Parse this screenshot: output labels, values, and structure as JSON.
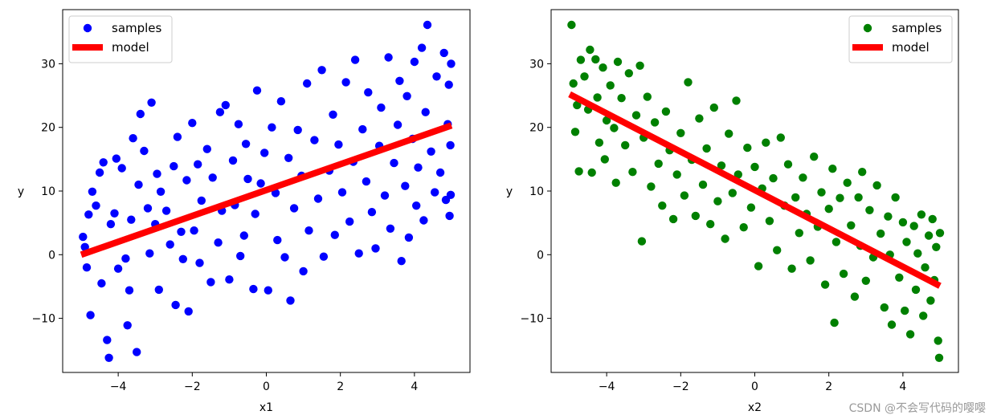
{
  "chart_data": [
    {
      "type": "scatter",
      "xlabel": "x1",
      "ylabel": "y",
      "xlim": [
        -5.5,
        5.5
      ],
      "ylim": [
        -18.5,
        38.5
      ],
      "xticks": [
        -4,
        -2,
        0,
        2,
        4
      ],
      "yticks": [
        -10,
        0,
        10,
        20,
        30
      ],
      "legend_position": "top-left",
      "grid": false,
      "series": [
        {
          "name": "samples",
          "kind": "scatter",
          "color": "#0000ff",
          "points": [
            [
              -4.95,
              2.8
            ],
            [
              -4.9,
              1.2
            ],
            [
              -4.85,
              -2.0
            ],
            [
              -4.8,
              6.3
            ],
            [
              -4.75,
              -9.5
            ],
            [
              -4.7,
              9.9
            ],
            [
              -4.6,
              7.7
            ],
            [
              -4.5,
              12.9
            ],
            [
              -4.45,
              -4.5
            ],
            [
              -4.4,
              14.5
            ],
            [
              -4.3,
              -13.4
            ],
            [
              -4.25,
              -16.2
            ],
            [
              -4.2,
              4.8
            ],
            [
              -4.1,
              6.5
            ],
            [
              -4.05,
              15.1
            ],
            [
              -4.0,
              -2.2
            ],
            [
              -3.9,
              13.6
            ],
            [
              -3.8,
              -0.6
            ],
            [
              -3.75,
              -11.1
            ],
            [
              -3.7,
              -5.6
            ],
            [
              -3.65,
              5.5
            ],
            [
              -3.6,
              18.3
            ],
            [
              -3.5,
              -15.3
            ],
            [
              -3.45,
              11.0
            ],
            [
              -3.4,
              22.1
            ],
            [
              -3.3,
              16.3
            ],
            [
              -3.2,
              7.3
            ],
            [
              -3.15,
              0.2
            ],
            [
              -3.1,
              23.9
            ],
            [
              -3.0,
              4.8
            ],
            [
              -2.95,
              12.7
            ],
            [
              -2.9,
              -5.5
            ],
            [
              -2.85,
              9.9
            ],
            [
              -2.7,
              6.9
            ],
            [
              -2.6,
              1.6
            ],
            [
              -2.5,
              13.9
            ],
            [
              -2.45,
              -7.9
            ],
            [
              -2.4,
              18.5
            ],
            [
              -2.3,
              3.6
            ],
            [
              -2.25,
              -0.7
            ],
            [
              -2.15,
              11.7
            ],
            [
              -2.1,
              -8.9
            ],
            [
              -2.0,
              20.7
            ],
            [
              -1.95,
              3.8
            ],
            [
              -1.85,
              14.2
            ],
            [
              -1.8,
              -1.3
            ],
            [
              -1.75,
              8.5
            ],
            [
              -1.6,
              16.6
            ],
            [
              -1.5,
              -4.3
            ],
            [
              -1.45,
              12.1
            ],
            [
              -1.3,
              1.9
            ],
            [
              -1.25,
              22.4
            ],
            [
              -1.2,
              6.9
            ],
            [
              -1.1,
              23.5
            ],
            [
              -1.0,
              -3.9
            ],
            [
              -0.9,
              14.8
            ],
            [
              -0.85,
              7.8
            ],
            [
              -0.75,
              20.5
            ],
            [
              -0.7,
              -0.2
            ],
            [
              -0.6,
              3.0
            ],
            [
              -0.55,
              17.4
            ],
            [
              -0.5,
              11.9
            ],
            [
              -0.35,
              -5.4
            ],
            [
              -0.3,
              6.4
            ],
            [
              -0.25,
              25.8
            ],
            [
              -0.15,
              11.2
            ],
            [
              -0.05,
              16.0
            ],
            [
              0.05,
              -5.6
            ],
            [
              0.15,
              20.0
            ],
            [
              0.25,
              9.7
            ],
            [
              0.3,
              2.3
            ],
            [
              0.4,
              24.1
            ],
            [
              0.5,
              -0.4
            ],
            [
              0.6,
              15.2
            ],
            [
              0.65,
              -7.2
            ],
            [
              0.75,
              7.3
            ],
            [
              0.85,
              19.6
            ],
            [
              0.95,
              12.4
            ],
            [
              1.0,
              -2.6
            ],
            [
              1.1,
              26.9
            ],
            [
              1.15,
              3.8
            ],
            [
              1.3,
              18.0
            ],
            [
              1.4,
              8.8
            ],
            [
              1.5,
              29.0
            ],
            [
              1.55,
              -0.3
            ],
            [
              1.7,
              13.2
            ],
            [
              1.8,
              22.0
            ],
            [
              1.85,
              3.1
            ],
            [
              1.95,
              17.3
            ],
            [
              2.05,
              9.8
            ],
            [
              2.15,
              27.1
            ],
            [
              2.25,
              5.2
            ],
            [
              2.35,
              14.6
            ],
            [
              2.4,
              30.6
            ],
            [
              2.5,
              0.2
            ],
            [
              2.6,
              19.7
            ],
            [
              2.7,
              11.5
            ],
            [
              2.75,
              25.5
            ],
            [
              2.85,
              6.7
            ],
            [
              2.95,
              1.0
            ],
            [
              3.05,
              17.1
            ],
            [
              3.1,
              23.1
            ],
            [
              3.2,
              9.3
            ],
            [
              3.3,
              31.0
            ],
            [
              3.35,
              4.1
            ],
            [
              3.45,
              14.4
            ],
            [
              3.55,
              20.4
            ],
            [
              3.6,
              27.3
            ],
            [
              3.65,
              -1.0
            ],
            [
              3.75,
              10.8
            ],
            [
              3.8,
              24.9
            ],
            [
              3.85,
              2.7
            ],
            [
              3.95,
              18.2
            ],
            [
              4.0,
              30.3
            ],
            [
              4.05,
              7.7
            ],
            [
              4.1,
              13.7
            ],
            [
              4.2,
              32.5
            ],
            [
              4.25,
              5.4
            ],
            [
              4.3,
              22.4
            ],
            [
              4.35,
              36.1
            ],
            [
              4.45,
              16.2
            ],
            [
              4.55,
              9.8
            ],
            [
              4.6,
              28.0
            ],
            [
              4.7,
              12.9
            ],
            [
              4.8,
              31.7
            ],
            [
              4.85,
              8.6
            ],
            [
              4.9,
              20.5
            ],
            [
              4.93,
              26.7
            ],
            [
              4.95,
              6.1
            ],
            [
              4.97,
              17.2
            ],
            [
              4.98,
              9.4
            ],
            [
              4.99,
              30.0
            ]
          ]
        },
        {
          "name": "model",
          "kind": "line",
          "color": "#ff0000",
          "x": [
            -5.0,
            5.0
          ],
          "y": [
            0.0,
            20.3
          ]
        }
      ]
    },
    {
      "type": "scatter",
      "xlabel": "x2",
      "ylabel": "y",
      "xlim": [
        -5.5,
        5.5
      ],
      "ylim": [
        -18.5,
        38.5
      ],
      "xticks": [
        -4,
        -2,
        0,
        2,
        4
      ],
      "yticks": [
        -10,
        0,
        10,
        20,
        30
      ],
      "legend_position": "top-right",
      "grid": false,
      "series": [
        {
          "name": "samples",
          "kind": "scatter",
          "color": "#008000",
          "points": [
            [
              -4.95,
              36.1
            ],
            [
              -4.9,
              26.9
            ],
            [
              -4.85,
              19.3
            ],
            [
              -4.8,
              23.5
            ],
            [
              -4.75,
              13.1
            ],
            [
              -4.7,
              30.6
            ],
            [
              -4.6,
              28.0
            ],
            [
              -4.5,
              22.8
            ],
            [
              -4.45,
              32.2
            ],
            [
              -4.4,
              12.9
            ],
            [
              -4.3,
              30.7
            ],
            [
              -4.25,
              24.7
            ],
            [
              -4.2,
              17.6
            ],
            [
              -4.1,
              29.4
            ],
            [
              -4.05,
              15.0
            ],
            [
              -4.0,
              21.1
            ],
            [
              -3.9,
              26.6
            ],
            [
              -3.8,
              19.9
            ],
            [
              -3.75,
              11.3
            ],
            [
              -3.7,
              30.3
            ],
            [
              -3.6,
              24.6
            ],
            [
              -3.5,
              17.2
            ],
            [
              -3.4,
              28.5
            ],
            [
              -3.3,
              13.0
            ],
            [
              -3.2,
              21.9
            ],
            [
              -3.1,
              29.7
            ],
            [
              -3.05,
              2.1
            ],
            [
              -3.0,
              18.4
            ],
            [
              -2.9,
              24.8
            ],
            [
              -2.8,
              10.7
            ],
            [
              -2.7,
              20.8
            ],
            [
              -2.6,
              14.3
            ],
            [
              -2.5,
              7.7
            ],
            [
              -2.4,
              22.5
            ],
            [
              -2.3,
              16.4
            ],
            [
              -2.2,
              5.6
            ],
            [
              -2.1,
              12.6
            ],
            [
              -2.0,
              19.1
            ],
            [
              -1.9,
              9.3
            ],
            [
              -1.8,
              27.1
            ],
            [
              -1.7,
              14.9
            ],
            [
              -1.6,
              6.1
            ],
            [
              -1.5,
              21.4
            ],
            [
              -1.4,
              11.0
            ],
            [
              -1.3,
              16.7
            ],
            [
              -1.2,
              4.8
            ],
            [
              -1.1,
              23.1
            ],
            [
              -1.0,
              8.4
            ],
            [
              -0.9,
              14.0
            ],
            [
              -0.8,
              2.5
            ],
            [
              -0.7,
              19.0
            ],
            [
              -0.6,
              9.7
            ],
            [
              -0.5,
              24.2
            ],
            [
              -0.45,
              12.6
            ],
            [
              -0.3,
              4.3
            ],
            [
              -0.2,
              16.8
            ],
            [
              -0.1,
              7.4
            ],
            [
              0.0,
              13.8
            ],
            [
              0.1,
              -1.8
            ],
            [
              0.2,
              10.4
            ],
            [
              0.3,
              17.6
            ],
            [
              0.4,
              5.3
            ],
            [
              0.5,
              12.0
            ],
            [
              0.6,
              0.7
            ],
            [
              0.7,
              18.4
            ],
            [
              0.8,
              7.7
            ],
            [
              0.9,
              14.2
            ],
            [
              1.0,
              -2.2
            ],
            [
              1.1,
              9.0
            ],
            [
              1.2,
              3.4
            ],
            [
              1.3,
              12.1
            ],
            [
              1.4,
              6.4
            ],
            [
              1.5,
              -0.9
            ],
            [
              1.6,
              15.4
            ],
            [
              1.7,
              4.4
            ],
            [
              1.8,
              9.8
            ],
            [
              1.9,
              -4.7
            ],
            [
              2.0,
              7.2
            ],
            [
              2.1,
              13.5
            ],
            [
              2.15,
              -10.7
            ],
            [
              2.2,
              2.0
            ],
            [
              2.3,
              8.9
            ],
            [
              2.4,
              -3.0
            ],
            [
              2.5,
              11.3
            ],
            [
              2.6,
              4.6
            ],
            [
              2.7,
              -6.6
            ],
            [
              2.8,
              9.0
            ],
            [
              2.85,
              1.4
            ],
            [
              2.9,
              13.0
            ],
            [
              3.0,
              -4.1
            ],
            [
              3.1,
              7.0
            ],
            [
              3.2,
              -0.4
            ],
            [
              3.3,
              10.9
            ],
            [
              3.4,
              3.3
            ],
            [
              3.5,
              -8.3
            ],
            [
              3.6,
              6.0
            ],
            [
              3.65,
              0.0
            ],
            [
              3.7,
              -11.0
            ],
            [
              3.8,
              9.0
            ],
            [
              3.9,
              -3.6
            ],
            [
              4.0,
              5.1
            ],
            [
              4.05,
              -8.8
            ],
            [
              4.1,
              2.0
            ],
            [
              4.2,
              -12.5
            ],
            [
              4.3,
              4.5
            ],
            [
              4.35,
              -5.5
            ],
            [
              4.4,
              0.2
            ],
            [
              4.5,
              6.3
            ],
            [
              4.55,
              -9.6
            ],
            [
              4.6,
              -2.0
            ],
            [
              4.7,
              3.0
            ],
            [
              4.75,
              -7.2
            ],
            [
              4.8,
              5.6
            ],
            [
              4.85,
              -4.0
            ],
            [
              4.9,
              1.2
            ],
            [
              4.95,
              -13.5
            ],
            [
              4.98,
              -16.2
            ],
            [
              5.0,
              3.4
            ]
          ]
        },
        {
          "name": "model",
          "kind": "line",
          "color": "#ff0000",
          "x": [
            -5.0,
            5.0
          ],
          "y": [
            25.2,
            -4.9
          ]
        }
      ]
    }
  ],
  "watermark": "CSDN @不会写代码的嘤嘤"
}
